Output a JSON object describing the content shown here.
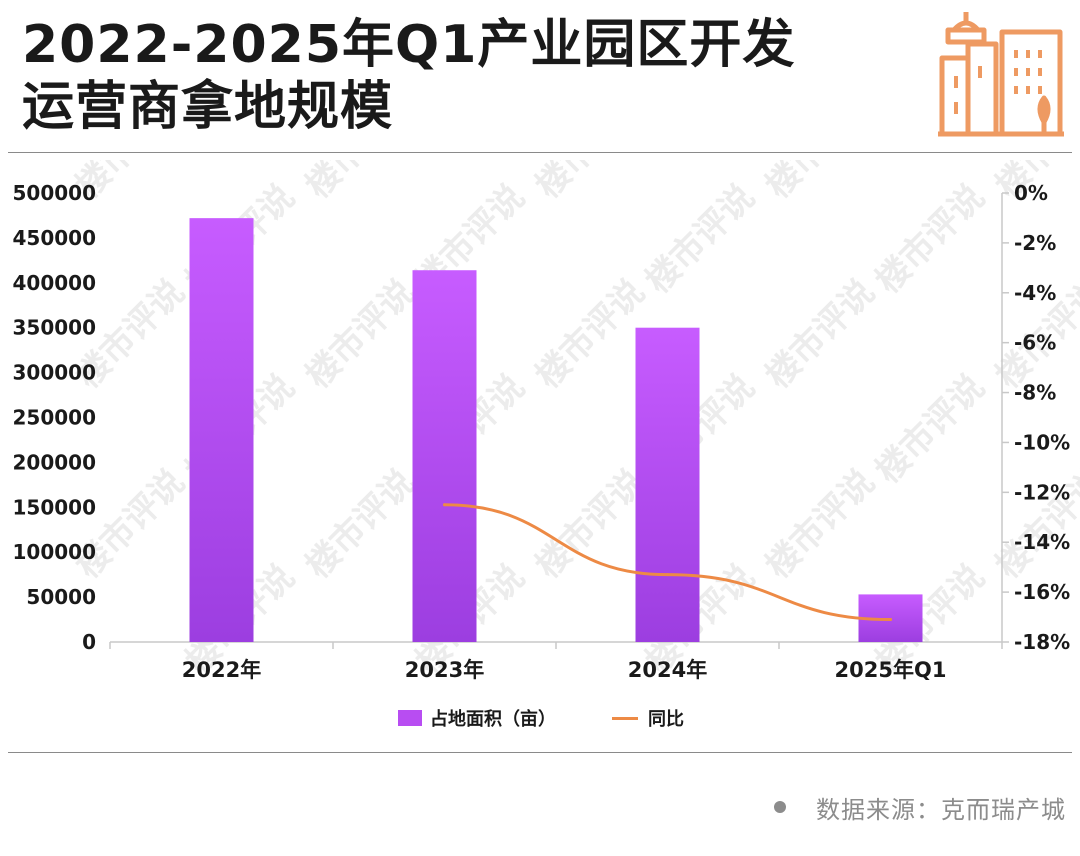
{
  "header": {
    "title_line1": "2022-2025年Q1产业园区开发",
    "title_line2": "运营商拿地规模"
  },
  "logo": {
    "icon": "city-buildings-icon",
    "color": "#ee9a62"
  },
  "chart_data": {
    "type": "bar",
    "categories": [
      "2022年",
      "2023年",
      "2024年",
      "2025年Q1"
    ],
    "series": [
      {
        "name": "占地面积（亩）",
        "type": "bar",
        "axis": "left",
        "color": "#b84df2",
        "values": [
          472000,
          414000,
          350000,
          53000
        ]
      },
      {
        "name": "同比",
        "type": "line",
        "axis": "right",
        "color": "#ed8a45",
        "values": [
          null,
          -12.5,
          -15.3,
          -17.1
        ]
      }
    ],
    "y_left": {
      "min": 0,
      "max": 500000,
      "ticks": [
        "500000",
        "450000",
        "400000",
        "350000",
        "300000",
        "250000",
        "200000",
        "150000",
        "100000",
        "50000",
        "0"
      ]
    },
    "y_right": {
      "min": -18,
      "max": 0,
      "unit": "%",
      "ticks": [
        "0%",
        "-2%",
        "-4%",
        "-6%",
        "-8%",
        "-10%",
        "-12%",
        "-14%",
        "-16%",
        "-18%"
      ]
    },
    "legend": {
      "position": "bottom"
    },
    "grid": false
  },
  "footer": {
    "source": "数据来源：克而瑞产城"
  },
  "watermark": {
    "text": "楼市评说"
  }
}
